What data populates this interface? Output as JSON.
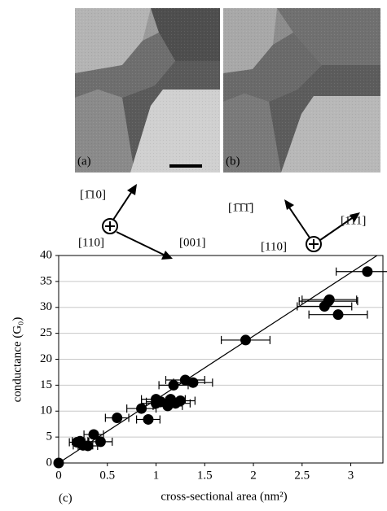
{
  "panels": [
    {
      "label": "(a)"
    },
    {
      "label": "(b)"
    }
  ],
  "directions": {
    "a": {
      "up": "[1̄10]",
      "center": "[110]",
      "right": "[001]"
    },
    "b": {
      "up": "[1̄1̄1̄]",
      "center": "[110]",
      "right": "[1̄11]"
    }
  },
  "chart_data": {
    "type": "scatter",
    "panel_label": "(c)",
    "xlabel": "cross-sectional area (nm²)",
    "ylabel": "conductance (G₀)",
    "xlim": [
      0,
      3.33
    ],
    "ylim": [
      0,
      40
    ],
    "xticks": [
      0,
      0.5,
      1,
      1.5,
      2,
      2.5,
      3
    ],
    "yticks": [
      0,
      5,
      10,
      15,
      20,
      25,
      30,
      35,
      40
    ],
    "grid": true,
    "series": [
      {
        "color": "#000000",
        "x": [
          0,
          0.19,
          0.22,
          0.25,
          0.3,
          0.36,
          0.43,
          0.6,
          0.85,
          0.92,
          1.0,
          1.0,
          1.05,
          1.12,
          1.15,
          1.18,
          1.2,
          1.25,
          1.3,
          1.38,
          1.92,
          2.73,
          2.77,
          2.78,
          2.87,
          3.17
        ],
        "values": [
          0,
          4,
          4.2,
          3.4,
          3.3,
          5.5,
          4.1,
          8.7,
          10.5,
          8.4,
          11.5,
          12.3,
          11.8,
          11,
          12.3,
          15,
          11.5,
          12,
          16,
          15.5,
          23.7,
          30.2,
          31.2,
          31.5,
          28.6,
          36.9
        ],
        "x_err": [
          0,
          0.08,
          0.08,
          0.1,
          0.1,
          0.1,
          0.12,
          0.12,
          0.15,
          0.12,
          0.15,
          0.15,
          0.15,
          0.15,
          0.15,
          0.15,
          0.15,
          0.15,
          0.2,
          0.2,
          0.25,
          0.28,
          0.3,
          0.28,
          0.3,
          0.32
        ]
      }
    ],
    "fit_line": {
      "color": "#000000",
      "x": [
        0,
        3.27
      ],
      "values": [
        0,
        40
      ]
    }
  }
}
